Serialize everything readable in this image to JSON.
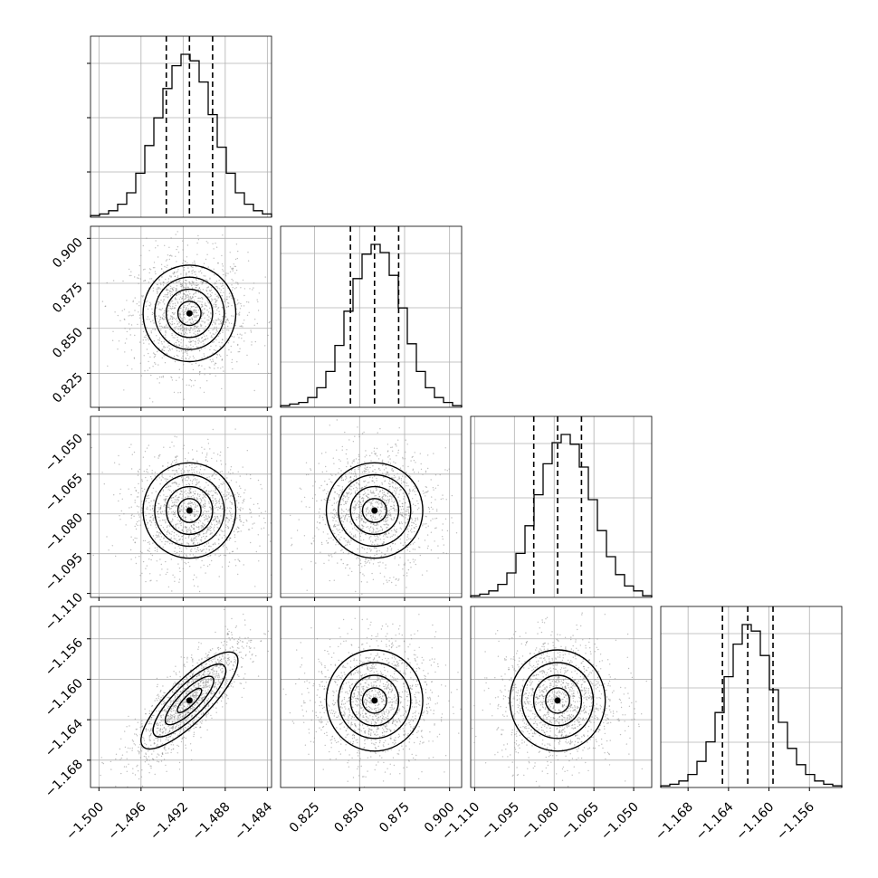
{
  "chart_data": {
    "type": "corner",
    "figure_background": "#ffffff",
    "colors": {
      "line": "#000000",
      "grid": "#b0b0b0",
      "density_dark": "#000000",
      "density_light": "#ffffff",
      "scatter_points": "#888888"
    },
    "grid": true,
    "tick_label_rotation_deg": 45,
    "parameters": [
      {
        "index": 0,
        "range": [
          -1.5008,
          -1.4836
        ],
        "ticks": [
          -1.5,
          -1.496,
          -1.492,
          -1.488,
          -1.484
        ],
        "tick_labels": [
          "−1.500",
          "−1.496",
          "−1.492",
          "−1.488",
          "−1.484"
        ],
        "quantiles": [
          -1.4936,
          -1.4914,
          -1.4892
        ],
        "median": -1.4914,
        "sigma": 0.0022,
        "hist_bin_count": 20
      },
      {
        "index": 1,
        "range": [
          0.8061,
          0.9067
        ],
        "ticks": [
          0.825,
          0.85,
          0.875,
          0.9
        ],
        "tick_labels": [
          "0.825",
          "0.850",
          "0.875",
          "0.900"
        ],
        "quantiles": [
          0.8449,
          0.8583,
          0.8717
        ],
        "median": 0.8583,
        "sigma": 0.0134,
        "hist_bin_count": 20
      },
      {
        "index": 2,
        "range": [
          -1.1115,
          -1.0432
        ],
        "ticks": [
          -1.11,
          -1.095,
          -1.08,
          -1.065,
          -1.05
        ],
        "tick_labels": [
          "−1.110",
          "−1.095",
          "−1.080",
          "−1.065",
          "−1.050"
        ],
        "quantiles": [
          -1.0877,
          -1.0787,
          -1.0697
        ],
        "median": -1.0787,
        "sigma": 0.009,
        "hist_bin_count": 20
      },
      {
        "index": 3,
        "range": [
          -1.1707,
          -1.1528
        ],
        "ticks": [
          -1.168,
          -1.164,
          -1.16,
          -1.156
        ],
        "tick_labels": [
          "−1.168",
          "−1.164",
          "−1.160",
          "−1.156"
        ],
        "quantiles": [
          -1.1646,
          -1.1621,
          -1.1596
        ],
        "median": -1.1621,
        "sigma": 0.0025,
        "hist_bin_count": 20
      }
    ],
    "histograms": {
      "0": [
        0.01,
        0.02,
        0.04,
        0.08,
        0.15,
        0.27,
        0.44,
        0.61,
        0.79,
        0.93,
        1.0,
        0.96,
        0.83,
        0.63,
        0.43,
        0.27,
        0.15,
        0.08,
        0.04,
        0.02
      ],
      "1": [
        0.01,
        0.02,
        0.03,
        0.06,
        0.12,
        0.22,
        0.38,
        0.59,
        0.79,
        0.94,
        1.0,
        0.95,
        0.81,
        0.61,
        0.39,
        0.22,
        0.12,
        0.06,
        0.03,
        0.01
      ],
      "2": [
        0.01,
        0.02,
        0.04,
        0.08,
        0.15,
        0.27,
        0.44,
        0.63,
        0.82,
        0.95,
        1.0,
        0.94,
        0.8,
        0.6,
        0.41,
        0.25,
        0.14,
        0.07,
        0.04,
        0.01
      ],
      "3": [
        0.01,
        0.02,
        0.04,
        0.08,
        0.16,
        0.28,
        0.46,
        0.68,
        0.88,
        1.0,
        0.96,
        0.81,
        0.6,
        0.4,
        0.24,
        0.14,
        0.08,
        0.04,
        0.02,
        0.01
      ]
    },
    "correlations": {
      "1_0": 0.0,
      "2_0": 0.0,
      "2_1": 0.0,
      "3_0": 0.82,
      "3_1": 0.0,
      "3_2": 0.0
    },
    "contour_levels_sigma": [
      0.5,
      1.0,
      1.5,
      2.0
    ]
  }
}
